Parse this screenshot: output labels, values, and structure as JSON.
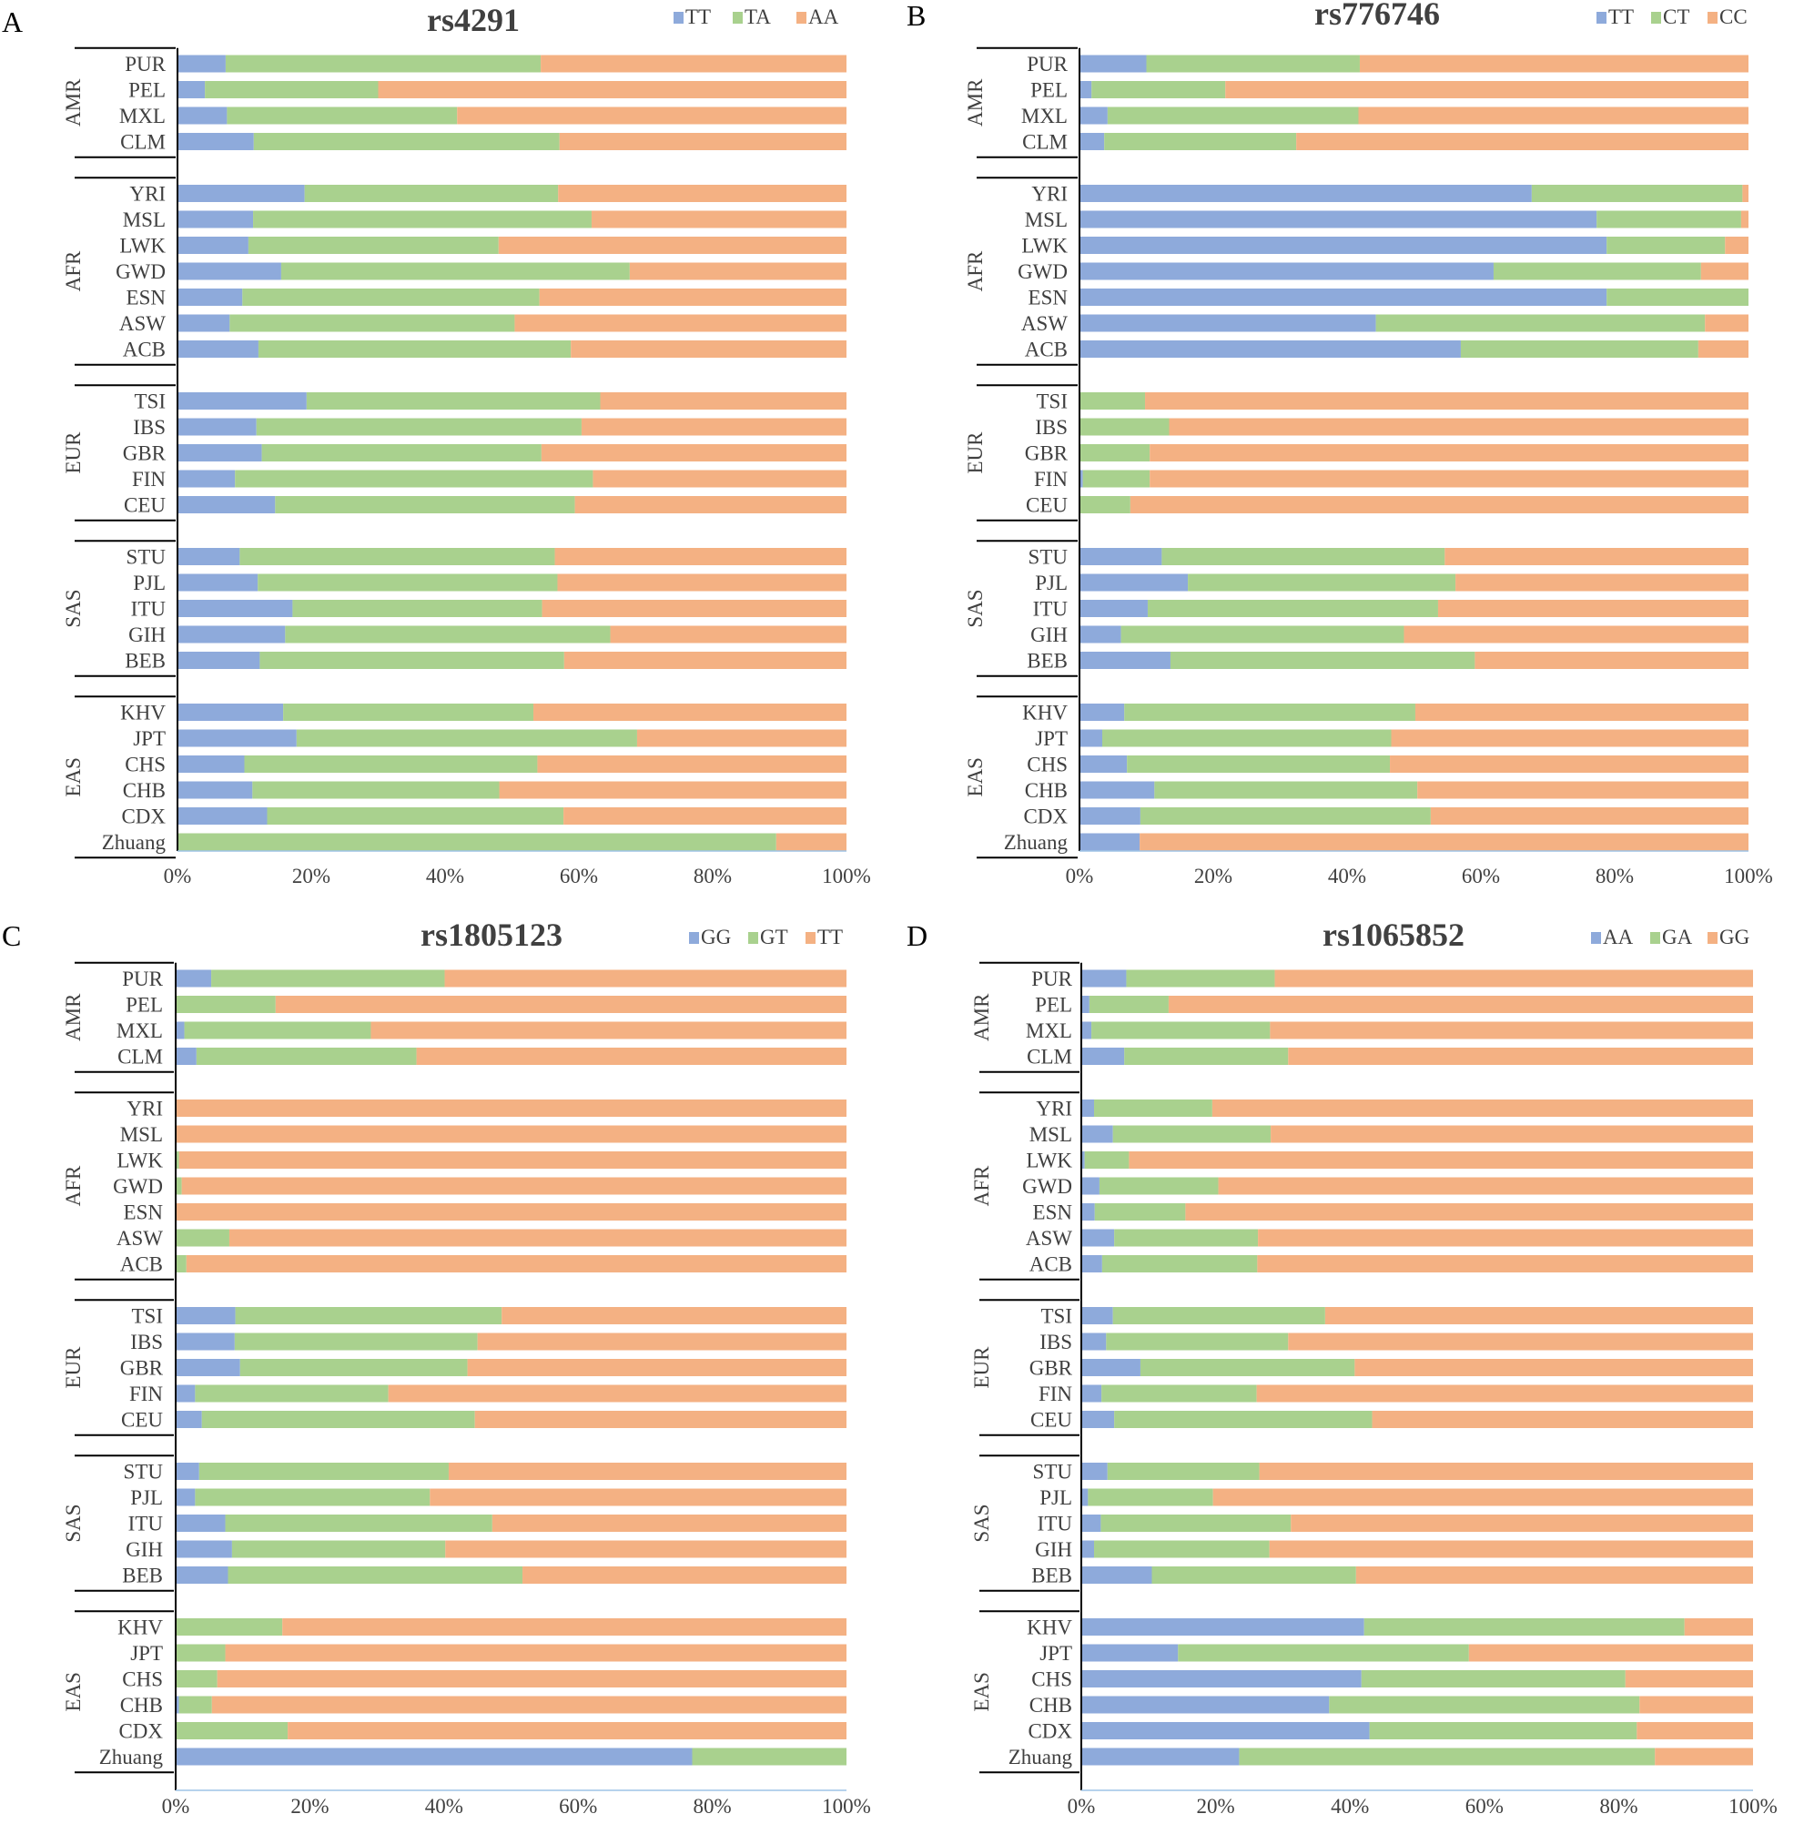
{
  "colors": {
    "series1": "#8EAADB",
    "series2": "#A9D18E",
    "series3": "#F4B183",
    "axis": "#000000"
  },
  "tick_labels": [
    "0%",
    "20%",
    "40%",
    "60%",
    "80%",
    "100%"
  ],
  "groups": [
    {
      "name": "AMR",
      "rows": [
        "PUR",
        "PEL",
        "MXL",
        "CLM"
      ]
    },
    {
      "name": "AFR",
      "rows": [
        "YRI",
        "MSL",
        "LWK",
        "GWD",
        "ESN",
        "ASW",
        "ACB"
      ]
    },
    {
      "name": "EUR",
      "rows": [
        "TSI",
        "IBS",
        "GBR",
        "FIN",
        "CEU"
      ]
    },
    {
      "name": "SAS",
      "rows": [
        "STU",
        "PJL",
        "ITU",
        "GIH",
        "BEB"
      ]
    },
    {
      "name": "EAS",
      "rows": [
        "KHV",
        "JPT",
        "CHS",
        "CHB",
        "CDX",
        "Zhuang"
      ]
    }
  ],
  "chart_data": [
    {
      "type": "bar",
      "orientation": "horizontal",
      "stacked": "percent",
      "panel": "A",
      "title": "rs4291",
      "categories": [
        "PUR",
        "PEL",
        "MXL",
        "CLM",
        "YRI",
        "MSL",
        "LWK",
        "GWD",
        "ESN",
        "ASW",
        "ACB",
        "TSI",
        "IBS",
        "GBR",
        "FIN",
        "CEU",
        "STU",
        "PJL",
        "ITU",
        "GIH",
        "BEB",
        "KHV",
        "JPT",
        "CHS",
        "CHB",
        "CDX",
        "Zhuang"
      ],
      "xlim": [
        0,
        100
      ],
      "legend": "top-right",
      "series": [
        {
          "name": "TT",
          "values": [
            7.2,
            4.1,
            7.4,
            11.4,
            19.0,
            11.3,
            10.6,
            15.5,
            9.7,
            7.8,
            12.1,
            19.3,
            11.8,
            12.6,
            8.6,
            14.6,
            9.3,
            12.0,
            17.2,
            16.1,
            12.3,
            15.8,
            17.8,
            10.0,
            11.2,
            13.4,
            0
          ]
        },
        {
          "name": "TA",
          "values": [
            47.1,
            25.9,
            34.4,
            45.7,
            37.9,
            50.6,
            37.4,
            52.1,
            44.4,
            42.6,
            46.7,
            43.9,
            48.6,
            41.8,
            53.5,
            44.8,
            47.1,
            44.8,
            37.3,
            48.6,
            45.5,
            37.4,
            50.9,
            43.8,
            36.9,
            44.3,
            89.5
          ]
        },
        {
          "name": "AA",
          "values": [
            45.7,
            70.0,
            58.2,
            42.9,
            43.1,
            38.1,
            52.0,
            32.4,
            45.9,
            49.6,
            41.2,
            36.8,
            39.6,
            45.6,
            37.9,
            40.6,
            43.6,
            43.2,
            45.5,
            35.3,
            42.2,
            46.8,
            31.3,
            46.2,
            51.9,
            42.3,
            10.5
          ]
        }
      ]
    },
    {
      "type": "bar",
      "orientation": "horizontal",
      "stacked": "percent",
      "panel": "B",
      "title": "rs776746",
      "categories": [
        "PUR",
        "PEL",
        "MXL",
        "CLM",
        "YRI",
        "MSL",
        "LWK",
        "GWD",
        "ESN",
        "ASW",
        "ACB",
        "TSI",
        "IBS",
        "GBR",
        "FIN",
        "CEU",
        "STU",
        "PJL",
        "ITU",
        "GIH",
        "BEB",
        "KHV",
        "JPT",
        "CHS",
        "CHB",
        "CDX",
        "Zhuang"
      ],
      "xlim": [
        0,
        100
      ],
      "legend": "top-right",
      "series": [
        {
          "name": "TT",
          "values": [
            10.0,
            1.8,
            4.2,
            3.7,
            67.6,
            77.3,
            78.8,
            61.9,
            78.8,
            44.3,
            57.0,
            0,
            0,
            0,
            0.5,
            0,
            12.3,
            16.2,
            10.2,
            6.2,
            13.6,
            6.7,
            3.4,
            7.1,
            11.2,
            9.1,
            9.0
          ]
        },
        {
          "name": "CT",
          "values": [
            31.9,
            20.0,
            37.5,
            28.7,
            31.5,
            21.6,
            17.7,
            31.0,
            21.2,
            49.2,
            35.5,
            9.8,
            13.4,
            10.5,
            10.0,
            7.6,
            42.3,
            40.0,
            43.4,
            42.3,
            45.5,
            43.5,
            43.2,
            39.3,
            39.3,
            43.4,
            0
          ]
        },
        {
          "name": "CC",
          "values": [
            58.1,
            78.2,
            58.3,
            67.6,
            0.9,
            1.1,
            3.5,
            7.1,
            0,
            6.5,
            7.5,
            90.2,
            86.6,
            89.5,
            89.5,
            92.4,
            45.4,
            43.8,
            46.4,
            51.5,
            40.9,
            49.8,
            53.4,
            53.6,
            49.5,
            47.5,
            91.0
          ]
        }
      ]
    },
    {
      "type": "bar",
      "orientation": "horizontal",
      "stacked": "percent",
      "panel": "C",
      "title": "rs1805123",
      "categories": [
        "PUR",
        "PEL",
        "MXL",
        "CLM",
        "YRI",
        "MSL",
        "LWK",
        "GWD",
        "ESN",
        "ASW",
        "ACB",
        "TSI",
        "IBS",
        "GBR",
        "FIN",
        "CEU",
        "STU",
        "PJL",
        "ITU",
        "GIH",
        "BEB",
        "KHV",
        "JPT",
        "CHS",
        "CHB",
        "CDX",
        "Zhuang"
      ],
      "xlim": [
        0,
        100
      ],
      "legend": "top-right",
      "series": [
        {
          "name": "GG",
          "values": [
            5.3,
            0,
            1.3,
            3.1,
            0,
            0,
            0,
            0,
            0,
            0,
            0,
            8.9,
            8.8,
            9.6,
            2.9,
            3.9,
            3.5,
            2.9,
            7.4,
            8.4,
            7.8,
            0,
            0,
            0,
            0.5,
            0,
            77.0
          ]
        },
        {
          "name": "GT",
          "values": [
            34.8,
            14.9,
            27.8,
            32.8,
            0,
            0,
            0.5,
            0.9,
            0,
            8.0,
            1.6,
            39.7,
            36.2,
            33.9,
            28.8,
            40.7,
            37.2,
            35.0,
            39.8,
            31.8,
            43.9,
            15.9,
            7.4,
            6.2,
            4.9,
            16.7,
            23.0
          ]
        },
        {
          "name": "TT",
          "values": [
            59.9,
            85.1,
            70.9,
            64.1,
            100,
            100,
            99.5,
            99.1,
            100,
            92.0,
            98.4,
            51.4,
            55.0,
            56.5,
            68.3,
            55.4,
            59.3,
            62.1,
            52.8,
            59.8,
            48.3,
            84.1,
            92.6,
            93.8,
            94.6,
            83.3,
            0
          ]
        }
      ]
    },
    {
      "type": "bar",
      "orientation": "horizontal",
      "stacked": "percent",
      "panel": "D",
      "title": "rs1065852",
      "categories": [
        "PUR",
        "PEL",
        "MXL",
        "CLM",
        "YRI",
        "MSL",
        "LWK",
        "GWD",
        "ESN",
        "ASW",
        "ACB",
        "TSI",
        "IBS",
        "GBR",
        "FIN",
        "CEU",
        "STU",
        "PJL",
        "ITU",
        "GIH",
        "BEB",
        "KHV",
        "JPT",
        "CHS",
        "CHB",
        "CDX",
        "Zhuang"
      ],
      "xlim": [
        0,
        100
      ],
      "legend": "top-right",
      "series": [
        {
          "name": "AA",
          "values": [
            6.7,
            1.2,
            1.5,
            6.4,
            1.9,
            4.7,
            0.5,
            2.7,
            2.0,
            4.9,
            3.1,
            4.7,
            3.7,
            8.8,
            3.0,
            4.9,
            3.9,
            1.0,
            2.9,
            1.9,
            10.5,
            42.1,
            14.4,
            41.7,
            36.9,
            42.9,
            23.5
          ]
        },
        {
          "name": "GA",
          "values": [
            22.1,
            11.8,
            26.6,
            24.4,
            17.6,
            23.5,
            6.6,
            17.7,
            13.5,
            21.4,
            23.1,
            31.6,
            27.1,
            31.9,
            23.1,
            38.4,
            22.6,
            18.6,
            28.3,
            26.1,
            30.4,
            47.7,
            43.3,
            39.3,
            46.2,
            39.8,
            61.9
          ]
        },
        {
          "name": "GG",
          "values": [
            71.2,
            87.0,
            71.9,
            69.2,
            80.5,
            71.8,
            92.9,
            79.6,
            84.5,
            73.7,
            73.8,
            63.7,
            69.2,
            59.3,
            73.9,
            56.7,
            73.5,
            80.4,
            68.8,
            72.0,
            59.1,
            10.2,
            42.3,
            19.0,
            16.9,
            17.3,
            14.6
          ]
        }
      ]
    }
  ]
}
